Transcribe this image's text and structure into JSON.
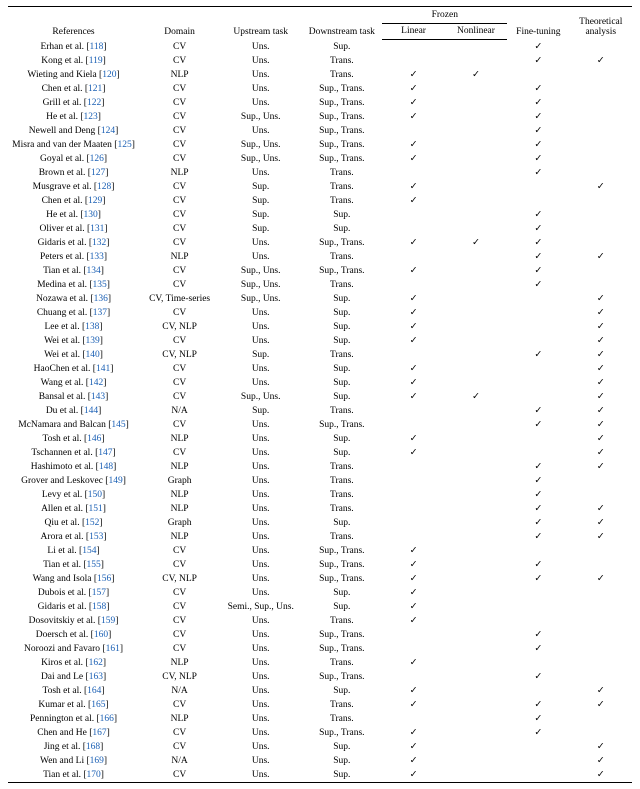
{
  "headers": {
    "references": "References",
    "domain": "Domain",
    "upstream": "Upstream task",
    "downstream": "Downstream task",
    "frozen": "Frozen",
    "linear": "Linear",
    "nonlinear": "Nonlinear",
    "finetuning": "Fine-tuning",
    "theory": "Theoretical analysis"
  },
  "checkmark": "✓",
  "rows": [
    {
      "author": "Erhan et al.",
      "num": "118",
      "domain": "CV",
      "up": "Uns.",
      "down": "Sup.",
      "lin": false,
      "nl": false,
      "ft": true,
      "th": false
    },
    {
      "author": "Kong et al.",
      "num": "119",
      "domain": "CV",
      "up": "Uns.",
      "down": "Trans.",
      "lin": false,
      "nl": false,
      "ft": true,
      "th": true
    },
    {
      "author": "Wieting and Kiela",
      "num": "120",
      "domain": "NLP",
      "up": "Uns.",
      "down": "Trans.",
      "lin": true,
      "nl": true,
      "ft": false,
      "th": false
    },
    {
      "author": "Chen et al.",
      "num": "121",
      "domain": "CV",
      "up": "Uns.",
      "down": "Sup., Trans.",
      "lin": true,
      "nl": false,
      "ft": true,
      "th": false
    },
    {
      "author": "Grill et al.",
      "num": "122",
      "domain": "CV",
      "up": "Uns.",
      "down": "Sup., Trans.",
      "lin": true,
      "nl": false,
      "ft": true,
      "th": false
    },
    {
      "author": "He et al.",
      "num": "123",
      "domain": "CV",
      "up": "Sup., Uns.",
      "down": "Sup., Trans.",
      "lin": true,
      "nl": false,
      "ft": true,
      "th": false
    },
    {
      "author": "Newell and Deng",
      "num": "124",
      "domain": "CV",
      "up": "Uns.",
      "down": "Sup., Trans.",
      "lin": false,
      "nl": false,
      "ft": true,
      "th": false
    },
    {
      "author": "Misra and van der Maaten",
      "num": "125",
      "domain": "CV",
      "up": "Sup., Uns.",
      "down": "Sup., Trans.",
      "lin": true,
      "nl": false,
      "ft": true,
      "th": false
    },
    {
      "author": "Goyal et al.",
      "num": "126",
      "domain": "CV",
      "up": "Sup., Uns.",
      "down": "Sup., Trans.",
      "lin": true,
      "nl": false,
      "ft": true,
      "th": false
    },
    {
      "author": "Brown et al.",
      "num": "127",
      "domain": "NLP",
      "up": "Uns.",
      "down": "Trans.",
      "lin": false,
      "nl": false,
      "ft": true,
      "th": false
    },
    {
      "author": "Musgrave et al.",
      "num": "128",
      "domain": "CV",
      "up": "Sup.",
      "down": "Trans.",
      "lin": true,
      "nl": false,
      "ft": false,
      "th": true
    },
    {
      "author": "Chen et al.",
      "num": "129",
      "domain": "CV",
      "up": "Sup.",
      "down": "Trans.",
      "lin": true,
      "nl": false,
      "ft": false,
      "th": false
    },
    {
      "author": "He et al.",
      "num": "130",
      "domain": "CV",
      "up": "Sup.",
      "down": "Sup.",
      "lin": false,
      "nl": false,
      "ft": true,
      "th": false
    },
    {
      "author": "Oliver et al.",
      "num": "131",
      "domain": "CV",
      "up": "Sup.",
      "down": "Sup.",
      "lin": false,
      "nl": false,
      "ft": true,
      "th": false
    },
    {
      "author": "Gidaris et al.",
      "num": "132",
      "domain": "CV",
      "up": "Uns.",
      "down": "Sup., Trans.",
      "lin": true,
      "nl": true,
      "ft": true,
      "th": false
    },
    {
      "author": "Peters et al.",
      "num": "133",
      "domain": "NLP",
      "up": "Uns.",
      "down": "Trans.",
      "lin": false,
      "nl": false,
      "ft": true,
      "th": true
    },
    {
      "author": "Tian et al.",
      "num": "134",
      "domain": "CV",
      "up": "Sup., Uns.",
      "down": "Sup., Trans.",
      "lin": true,
      "nl": false,
      "ft": true,
      "th": false
    },
    {
      "author": "Medina et al.",
      "num": "135",
      "domain": "CV",
      "up": "Sup., Uns.",
      "down": "Trans.",
      "lin": false,
      "nl": false,
      "ft": true,
      "th": false
    },
    {
      "author": "Nozawa et al.",
      "num": "136",
      "domain": "CV, Time-series",
      "up": "Sup., Uns.",
      "down": "Sup.",
      "lin": true,
      "nl": false,
      "ft": false,
      "th": true
    },
    {
      "author": "Chuang et al.",
      "num": "137",
      "domain": "CV",
      "up": "Uns.",
      "down": "Sup.",
      "lin": true,
      "nl": false,
      "ft": false,
      "th": true
    },
    {
      "author": "Lee et al.",
      "num": "138",
      "domain": "CV, NLP",
      "up": "Uns.",
      "down": "Sup.",
      "lin": true,
      "nl": false,
      "ft": false,
      "th": true
    },
    {
      "author": "Wei et al.",
      "num": "139",
      "domain": "CV",
      "up": "Uns.",
      "down": "Sup.",
      "lin": true,
      "nl": false,
      "ft": false,
      "th": true
    },
    {
      "author": "Wei et al.",
      "num": "140",
      "domain": "CV, NLP",
      "up": "Sup.",
      "down": "Trans.",
      "lin": false,
      "nl": false,
      "ft": true,
      "th": true
    },
    {
      "author": "HaoChen et al.",
      "num": "141",
      "domain": "CV",
      "up": "Uns.",
      "down": "Sup.",
      "lin": true,
      "nl": false,
      "ft": false,
      "th": true
    },
    {
      "author": "Wang et al.",
      "num": "142",
      "domain": "CV",
      "up": "Uns.",
      "down": "Sup.",
      "lin": true,
      "nl": false,
      "ft": false,
      "th": true
    },
    {
      "author": "Bansal et al.",
      "num": "143",
      "domain": "CV",
      "up": "Sup., Uns.",
      "down": "Sup.",
      "lin": true,
      "nl": true,
      "ft": false,
      "th": true
    },
    {
      "author": "Du et al.",
      "num": "144",
      "domain": "N/A",
      "up": "Sup.",
      "down": "Trans.",
      "lin": false,
      "nl": false,
      "ft": true,
      "th": true
    },
    {
      "author": "McNamara and Balcan",
      "num": "145",
      "domain": "CV",
      "up": "Uns.",
      "down": "Sup., Trans.",
      "lin": false,
      "nl": false,
      "ft": true,
      "th": true
    },
    {
      "author": "Tosh et al.",
      "num": "146",
      "domain": "NLP",
      "up": "Uns.",
      "down": "Sup.",
      "lin": true,
      "nl": false,
      "ft": false,
      "th": true
    },
    {
      "author": "Tschannen et al.",
      "num": "147",
      "domain": "CV",
      "up": "Uns.",
      "down": "Sup.",
      "lin": true,
      "nl": false,
      "ft": false,
      "th": true
    },
    {
      "author": "Hashimoto et al.",
      "num": "148",
      "domain": "NLP",
      "up": "Uns.",
      "down": "Trans.",
      "lin": false,
      "nl": false,
      "ft": true,
      "th": true
    },
    {
      "author": "Grover and Leskovec",
      "num": "149",
      "domain": "Graph",
      "up": "Uns.",
      "down": "Trans.",
      "lin": false,
      "nl": false,
      "ft": true,
      "th": false
    },
    {
      "author": "Levy et al.",
      "num": "150",
      "domain": "NLP",
      "up": "Uns.",
      "down": "Trans.",
      "lin": false,
      "nl": false,
      "ft": true,
      "th": false
    },
    {
      "author": "Allen et al.",
      "num": "151",
      "domain": "NLP",
      "up": "Uns.",
      "down": "Trans.",
      "lin": false,
      "nl": false,
      "ft": true,
      "th": true
    },
    {
      "author": "Qiu et al.",
      "num": "152",
      "domain": "Graph",
      "up": "Uns.",
      "down": "Sup.",
      "lin": false,
      "nl": false,
      "ft": true,
      "th": true
    },
    {
      "author": "Arora et al.",
      "num": "153",
      "domain": "NLP",
      "up": "Uns.",
      "down": "Trans.",
      "lin": false,
      "nl": false,
      "ft": true,
      "th": true
    },
    {
      "author": "Li et al.",
      "num": "154",
      "domain": "CV",
      "up": "Uns.",
      "down": "Sup., Trans.",
      "lin": true,
      "nl": false,
      "ft": false,
      "th": false
    },
    {
      "author": "Tian et al.",
      "num": "155",
      "domain": "CV",
      "up": "Uns.",
      "down": "Sup., Trans.",
      "lin": true,
      "nl": false,
      "ft": true,
      "th": false
    },
    {
      "author": "Wang and Isola",
      "num": "156",
      "domain": "CV, NLP",
      "up": "Uns.",
      "down": "Sup., Trans.",
      "lin": true,
      "nl": false,
      "ft": true,
      "th": true
    },
    {
      "author": "Dubois et al.",
      "num": "157",
      "domain": "CV",
      "up": "Uns.",
      "down": "Sup.",
      "lin": true,
      "nl": false,
      "ft": false,
      "th": false
    },
    {
      "author": "Gidaris et al.",
      "num": "158",
      "domain": "CV",
      "up": "Semi., Sup., Uns.",
      "down": "Sup.",
      "lin": true,
      "nl": false,
      "ft": false,
      "th": false
    },
    {
      "author": "Dosovitskiy et al.",
      "num": "159",
      "domain": "CV",
      "up": "Uns.",
      "down": "Trans.",
      "lin": true,
      "nl": false,
      "ft": false,
      "th": false
    },
    {
      "author": "Doersch et al.",
      "num": "160",
      "domain": "CV",
      "up": "Uns.",
      "down": "Sup., Trans.",
      "lin": false,
      "nl": false,
      "ft": true,
      "th": false
    },
    {
      "author": "Noroozi and Favaro",
      "num": "161",
      "domain": "CV",
      "up": "Uns.",
      "down": "Sup., Trans.",
      "lin": false,
      "nl": false,
      "ft": true,
      "th": false
    },
    {
      "author": "Kiros et al.",
      "num": "162",
      "domain": "NLP",
      "up": "Uns.",
      "down": "Trans.",
      "lin": true,
      "nl": false,
      "ft": false,
      "th": false
    },
    {
      "author": "Dai and Le",
      "num": "163",
      "domain": "CV, NLP",
      "up": "Uns.",
      "down": "Sup., Trans.",
      "lin": false,
      "nl": false,
      "ft": true,
      "th": false
    },
    {
      "author": "Tosh et al.",
      "num": "164",
      "domain": "N/A",
      "up": "Uns.",
      "down": "Sup.",
      "lin": true,
      "nl": false,
      "ft": false,
      "th": true
    },
    {
      "author": "Kumar et al.",
      "num": "165",
      "domain": "CV",
      "up": "Uns.",
      "down": "Trans.",
      "lin": true,
      "nl": false,
      "ft": true,
      "th": true
    },
    {
      "author": "Pennington et al.",
      "num": "166",
      "domain": "NLP",
      "up": "Uns.",
      "down": "Trans.",
      "lin": false,
      "nl": false,
      "ft": true,
      "th": false
    },
    {
      "author": "Chen and He",
      "num": "167",
      "domain": "CV",
      "up": "Uns.",
      "down": "Sup., Trans.",
      "lin": true,
      "nl": false,
      "ft": true,
      "th": false
    },
    {
      "author": "Jing et al.",
      "num": "168",
      "domain": "CV",
      "up": "Uns.",
      "down": "Sup.",
      "lin": true,
      "nl": false,
      "ft": false,
      "th": true
    },
    {
      "author": "Wen and Li",
      "num": "169",
      "domain": "N/A",
      "up": "Uns.",
      "down": "Sup.",
      "lin": true,
      "nl": false,
      "ft": false,
      "th": true
    },
    {
      "author": "Tian et al.",
      "num": "170",
      "domain": "CV",
      "up": "Uns.",
      "down": "Sup.",
      "lin": true,
      "nl": false,
      "ft": false,
      "th": true
    }
  ]
}
